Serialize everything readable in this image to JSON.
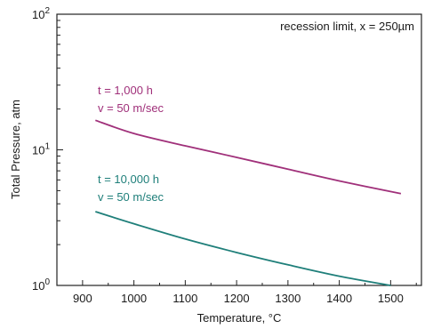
{
  "chart_data": {
    "type": "line",
    "xlabel": "Temperature, °C",
    "ylabel": "Total Pressure, atm",
    "xlim": [
      850,
      1560
    ],
    "ylim": [
      1,
      100
    ],
    "yscale": "log",
    "grid": false,
    "x_ticks": [
      900,
      1000,
      1100,
      1200,
      1300,
      1400,
      1500
    ],
    "x_tick_labels": [
      "900",
      "1000",
      "1100",
      "1200",
      "1300",
      "1400",
      "1500"
    ],
    "y_ticks": [
      1,
      10,
      100
    ],
    "y_tick_labels": [
      {
        "base": "10",
        "exp": "0"
      },
      {
        "base": "10",
        "exp": "1"
      },
      {
        "base": "10",
        "exp": "2"
      }
    ],
    "annotation": "recession limit, x = 250µm",
    "series": [
      {
        "color": "#a0307a",
        "label_lines": [
          "t = 1,000 h",
          "v = 50 m/sec"
        ],
        "x": [
          925,
          1000,
          1100,
          1200,
          1300,
          1400,
          1520
        ],
        "y": [
          16.5,
          13.2,
          10.7,
          8.8,
          7.2,
          5.9,
          4.75
        ]
      },
      {
        "color": "#1f7f7a",
        "label_lines": [
          "t = 10,000 h",
          "v = 50 m/sec"
        ],
        "x": [
          925,
          1000,
          1100,
          1200,
          1300,
          1400,
          1500
        ],
        "y": [
          3.5,
          2.85,
          2.2,
          1.75,
          1.42,
          1.17,
          1.0
        ]
      }
    ]
  }
}
